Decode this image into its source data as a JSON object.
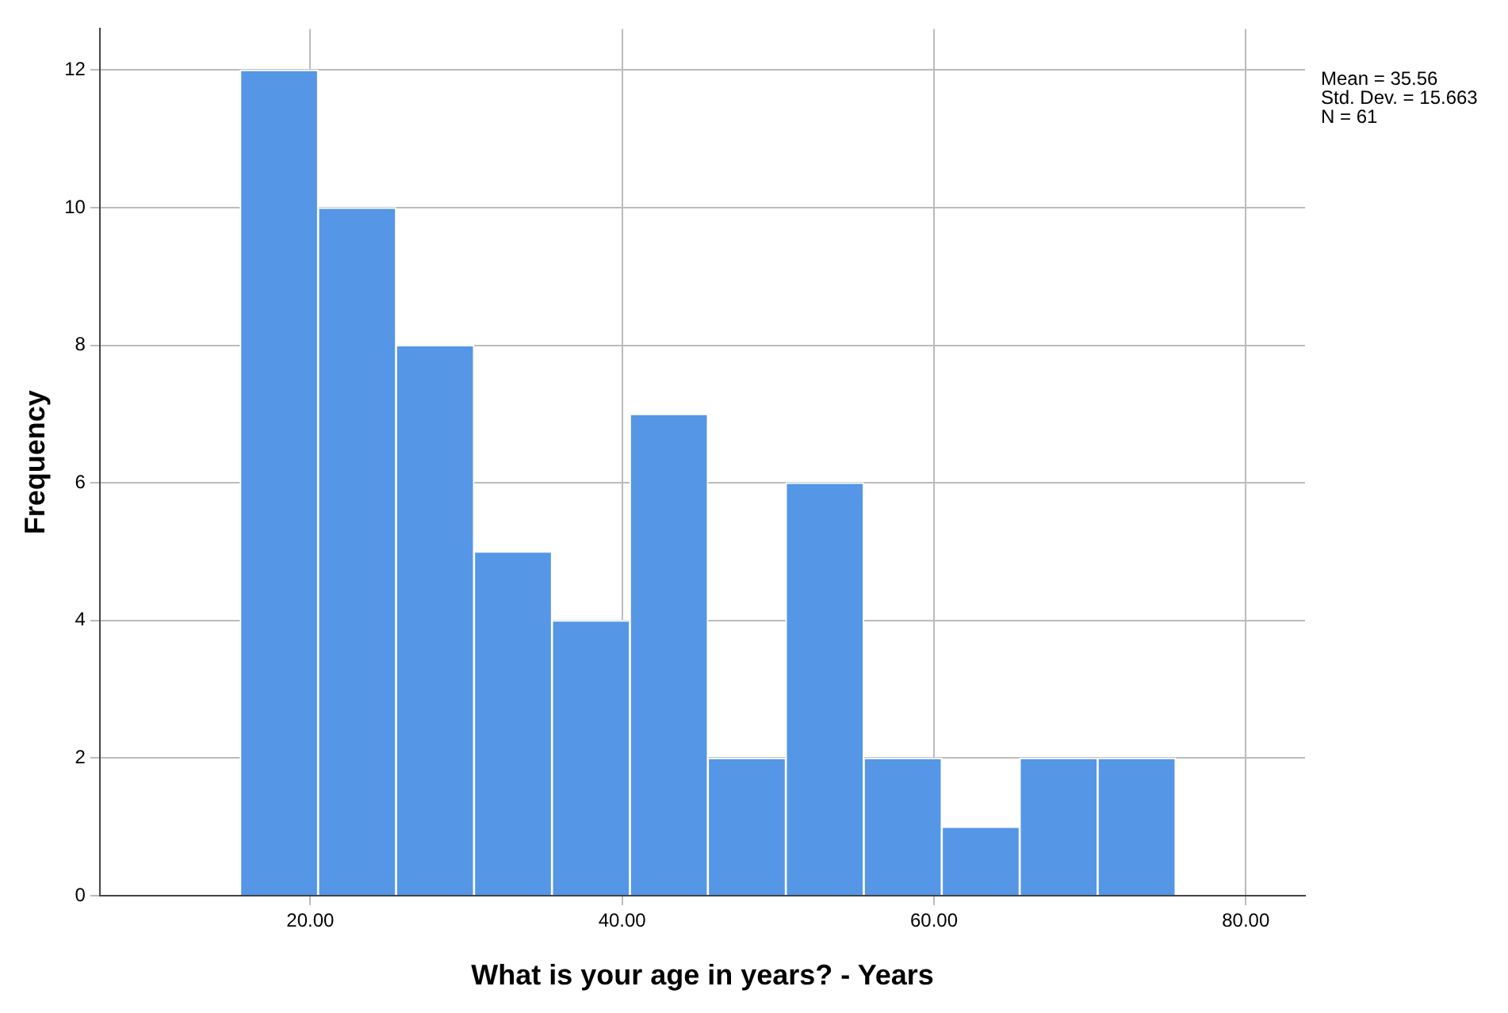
{
  "chart_data": {
    "type": "histogram",
    "xlabel": "What is your age in years? - Years",
    "ylabel": "Frequency",
    "bins": [
      15.5,
      20.5,
      25.5,
      30.5,
      35.5,
      40.5,
      45.5,
      50.5,
      55.5,
      60.5,
      65.5,
      70.5,
      75.5
    ],
    "values": [
      12,
      10,
      8,
      5,
      4,
      7,
      2,
      6,
      2,
      1,
      2,
      2
    ],
    "color": "#5596e6",
    "xlim": [
      6.5,
      83.8
    ],
    "xticks": [
      {
        "value": 20,
        "label": "20.00"
      },
      {
        "value": 40,
        "label": "40.00"
      },
      {
        "value": 60,
        "label": "60.00"
      },
      {
        "value": 80,
        "label": "80.00"
      }
    ],
    "ylim": [
      0,
      12.6
    ],
    "yticks": [
      0,
      2,
      4,
      6,
      8,
      10,
      12
    ],
    "grid": true,
    "annotations": [
      "Mean = 35.56",
      "Std. Dev. = 15.663",
      "N = 61"
    ]
  }
}
